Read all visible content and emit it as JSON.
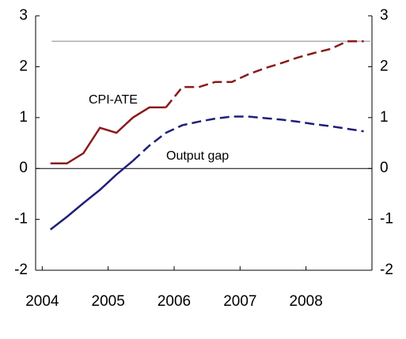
{
  "chart_data": {
    "type": "line",
    "x": [
      2004.125,
      2004.375,
      2004.625,
      2004.875,
      2005.125,
      2005.375,
      2005.625,
      2005.875,
      2006.125,
      2006.375,
      2006.625,
      2006.875,
      2007.125,
      2007.375,
      2007.625,
      2007.875,
      2008.125,
      2008.375,
      2008.625,
      2008.875
    ],
    "series": [
      {
        "name": "CPI-ATE",
        "color": "#8b1a1a",
        "values": [
          0.1,
          0.1,
          0.3,
          0.8,
          0.7,
          1.0,
          1.2,
          1.2,
          null,
          null,
          null,
          null,
          null,
          null,
          null,
          null,
          null,
          null,
          null,
          null
        ],
        "projection": [
          null,
          null,
          null,
          null,
          null,
          null,
          null,
          1.2,
          1.6,
          1.6,
          1.7,
          1.7,
          1.85,
          1.97,
          2.07,
          2.18,
          2.27,
          2.35,
          2.5,
          2.5
        ]
      },
      {
        "name": "Output gap",
        "color": "#1f1f7a",
        "values": [
          -1.2,
          -0.95,
          -0.68,
          -0.42,
          -0.12,
          0.15,
          null,
          null,
          null,
          null,
          null,
          null,
          null,
          null,
          null,
          null,
          null,
          null,
          null,
          null
        ],
        "projection": [
          null,
          null,
          null,
          null,
          null,
          0.15,
          0.45,
          0.7,
          0.85,
          0.92,
          0.98,
          1.02,
          1.02,
          0.99,
          0.96,
          0.92,
          0.87,
          0.83,
          0.78,
          0.73
        ]
      }
    ],
    "reference_line": 2.5,
    "reference_color": "#b0b0b0",
    "xlim": [
      2003.9,
      2009.0
    ],
    "xticks": [
      2004,
      2005,
      2006,
      2007,
      2008
    ],
    "ylim": [
      -2,
      3
    ],
    "yticks": [
      -2,
      -1,
      0,
      1,
      2,
      3
    ],
    "y2lim": [
      -2,
      3
    ],
    "y2ticks": [
      -2,
      -1,
      0,
      1,
      2,
      3
    ]
  }
}
